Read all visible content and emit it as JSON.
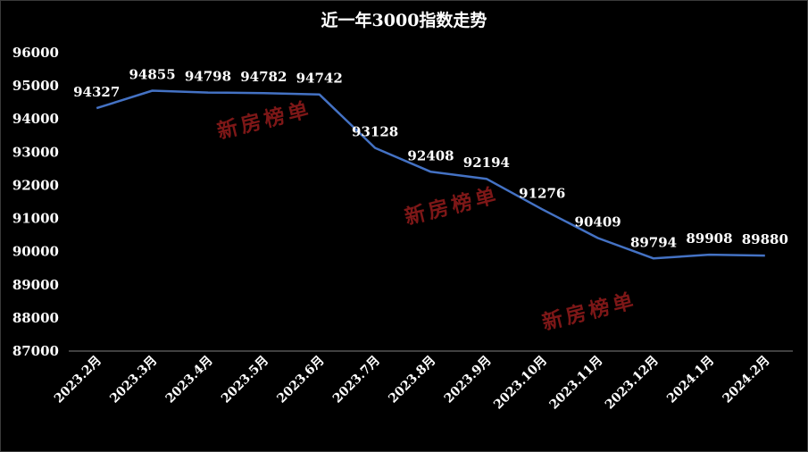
{
  "chart_data": {
    "type": "line",
    "title": "近一年3000指数走势",
    "categories": [
      "2023.2月",
      "2023.3月",
      "2023.4月",
      "2023.5月",
      "2023.6月",
      "2023.7月",
      "2023.8月",
      "2023.9月",
      "2023.10月",
      "2023.11月",
      "2023.12月",
      "2024.1月",
      "2024.2月"
    ],
    "series": [
      {
        "values": [
          94327,
          94855,
          94798,
          94782,
          94742,
          93128,
          92408,
          92194,
          91276,
          90409,
          89794,
          89908,
          89880
        ]
      }
    ],
    "ylim": [
      87000,
      96000
    ],
    "yticks": [
      96000,
      95000,
      94000,
      93000,
      92000,
      91000,
      90000,
      89000,
      88000,
      87000
    ],
    "grid": false,
    "data_labels": true,
    "colors": {
      "line": "#4472C4",
      "text": "#FFFFFF",
      "background": "#000000",
      "axis": "#7F7F7F",
      "watermark": "#8B1A1A"
    }
  },
  "watermark": {
    "text": "新房榜单"
  }
}
